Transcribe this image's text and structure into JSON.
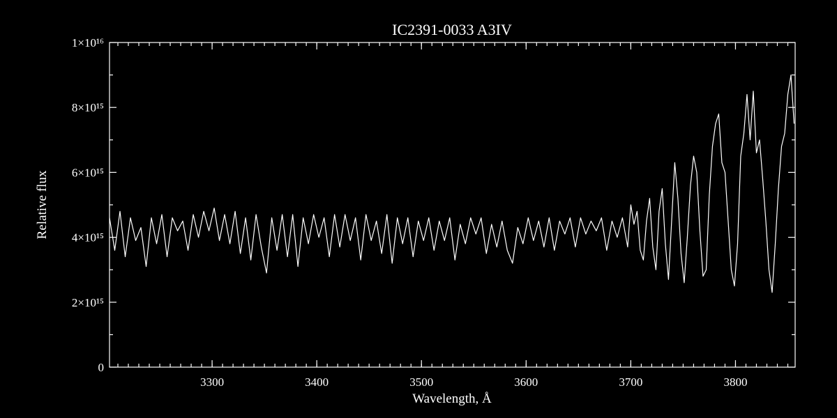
{
  "chart_data": {
    "type": "line",
    "title": "IC2391-0033   A3IV",
    "xlabel": "Wavelength, Å",
    "ylabel": "Relative flux",
    "color": "#ffffff",
    "xlim": [
      3202,
      3857
    ],
    "ylim": [
      0,
      1e+16
    ],
    "xticks": [
      3300,
      3400,
      3500,
      3600,
      3700,
      3800
    ],
    "yticks": [
      0,
      {
        "value": 2000000000000000.0,
        "label": "2×10¹⁵"
      },
      {
        "value": 4000000000000000.0,
        "label": "4×10¹⁵"
      },
      {
        "value": 6000000000000000.0,
        "label": "6×10¹⁵"
      },
      {
        "value": 8000000000000000.0,
        "label": "8×10¹⁵"
      },
      {
        "value": 1e+16,
        "label": "1×10¹⁶"
      }
    ],
    "x": [
      3202,
      3207,
      3212,
      3217,
      3222,
      3227,
      3232,
      3237,
      3242,
      3247,
      3252,
      3257,
      3262,
      3267,
      3272,
      3277,
      3282,
      3287,
      3292,
      3297,
      3302,
      3307,
      3312,
      3317,
      3322,
      3327,
      3332,
      3337,
      3342,
      3347,
      3352,
      3357,
      3362,
      3367,
      3372,
      3377,
      3382,
      3387,
      3392,
      3397,
      3402,
      3407,
      3412,
      3417,
      3422,
      3427,
      3432,
      3437,
      3442,
      3447,
      3452,
      3457,
      3462,
      3467,
      3472,
      3477,
      3482,
      3487,
      3492,
      3497,
      3502,
      3507,
      3512,
      3517,
      3522,
      3527,
      3532,
      3537,
      3542,
      3547,
      3552,
      3557,
      3562,
      3567,
      3572,
      3577,
      3582,
      3587,
      3592,
      3597,
      3602,
      3607,
      3612,
      3617,
      3622,
      3627,
      3632,
      3637,
      3642,
      3647,
      3652,
      3657,
      3662,
      3667,
      3672,
      3677,
      3682,
      3687,
      3692,
      3697,
      3700,
      3703,
      3706,
      3709,
      3712,
      3715,
      3718,
      3721,
      3724,
      3727,
      3730,
      3733,
      3736,
      3739,
      3742,
      3745,
      3748,
      3751,
      3754,
      3757,
      3760,
      3763,
      3766,
      3769,
      3772,
      3775,
      3778,
      3781,
      3784,
      3787,
      3790,
      3793,
      3796,
      3799,
      3802,
      3805,
      3808,
      3811,
      3814,
      3817,
      3820,
      3823,
      3826,
      3829,
      3832,
      3835,
      3838,
      3841,
      3844,
      3847,
      3850,
      3853,
      3856
    ],
    "values": [
      4600000000000000.0,
      3600000000000000.0,
      4800000000000000.0,
      3400000000000000.0,
      4600000000000000.0,
      3900000000000000.0,
      4300000000000000.0,
      3100000000000000.0,
      4600000000000000.0,
      3800000000000000.0,
      4700000000000000.0,
      3400000000000000.0,
      4600000000000000.0,
      4200000000000000.0,
      4500000000000000.0,
      3600000000000000.0,
      4700000000000000.0,
      4000000000000000.0,
      4800000000000000.0,
      4200000000000000.0,
      4900000000000000.0,
      3900000000000000.0,
      4700000000000000.0,
      3800000000000000.0,
      4800000000000000.0,
      3500000000000000.0,
      4600000000000000.0,
      3300000000000000.0,
      4700000000000000.0,
      3700000000000000.0,
      2900000000000000.0,
      4600000000000000.0,
      3600000000000000.0,
      4700000000000000.0,
      3400000000000000.0,
      4700000000000000.0,
      3100000000000000.0,
      4600000000000000.0,
      3800000000000000.0,
      4700000000000000.0,
      4000000000000000.0,
      4600000000000000.0,
      3400000000000000.0,
      4700000000000000.0,
      3700000000000000.0,
      4700000000000000.0,
      3900000000000000.0,
      4600000000000000.0,
      3300000000000000.0,
      4700000000000000.0,
      3900000000000000.0,
      4500000000000000.0,
      3500000000000000.0,
      4700000000000000.0,
      3200000000000000.0,
      4600000000000000.0,
      3800000000000000.0,
      4600000000000000.0,
      3400000000000000.0,
      4500000000000000.0,
      3900000000000000.0,
      4600000000000000.0,
      3600000000000000.0,
      4500000000000000.0,
      3900000000000000.0,
      4600000000000000.0,
      3300000000000000.0,
      4400000000000000.0,
      3800000000000000.0,
      4600000000000000.0,
      4100000000000000.0,
      4600000000000000.0,
      3500000000000000.0,
      4400000000000000.0,
      3700000000000000.0,
      4500000000000000.0,
      3600000000000000.0,
      3200000000000000.0,
      4300000000000000.0,
      3800000000000000.0,
      4600000000000000.0,
      3900000000000000.0,
      4500000000000000.0,
      3700000000000000.0,
      4600000000000000.0,
      3600000000000000.0,
      4500000000000000.0,
      4100000000000000.0,
      4600000000000000.0,
      3700000000000000.0,
      4600000000000000.0,
      4100000000000000.0,
      4500000000000000.0,
      4200000000000000.0,
      4600000000000000.0,
      3600000000000000.0,
      4500000000000000.0,
      4000000000000000.0,
      4600000000000000.0,
      3700000000000000.0,
      5000000000000000.0,
      4400000000000000.0,
      4800000000000000.0,
      3600000000000000.0,
      3300000000000000.0,
      4500000000000000.0,
      5200000000000000.0,
      3700000000000000.0,
      3000000000000000.0,
      4800000000000000.0,
      5500000000000000.0,
      3800000000000000.0,
      2700000000000000.0,
      4500000000000000.0,
      6300000000000000.0,
      5200000000000000.0,
      3500000000000000.0,
      2600000000000000.0,
      4000000000000000.0,
      5600000000000000.0,
      6500000000000000.0,
      6000000000000000.0,
      4200000000000000.0,
      2800000000000000.0,
      3000000000000000.0,
      5300000000000000.0,
      6800000000000000.0,
      7500000000000000.0,
      7800000000000000.0,
      6300000000000000.0,
      6000000000000000.0,
      4500000000000000.0,
      3000000000000000.0,
      2500000000000000.0,
      3800000000000000.0,
      6500000000000000.0,
      7200000000000000.0,
      8400000000000000.0,
      7000000000000000.0,
      8500000000000000.0,
      6600000000000000.0,
      7000000000000000.0,
      5800000000000000.0,
      4500000000000000.0,
      3000000000000000.0,
      2300000000000000.0,
      3800000000000000.0,
      5500000000000000.0,
      6800000000000000.0,
      7200000000000000.0,
      8400000000000000.0,
      9000000000000000.0,
      7500000000000000.0
    ]
  }
}
